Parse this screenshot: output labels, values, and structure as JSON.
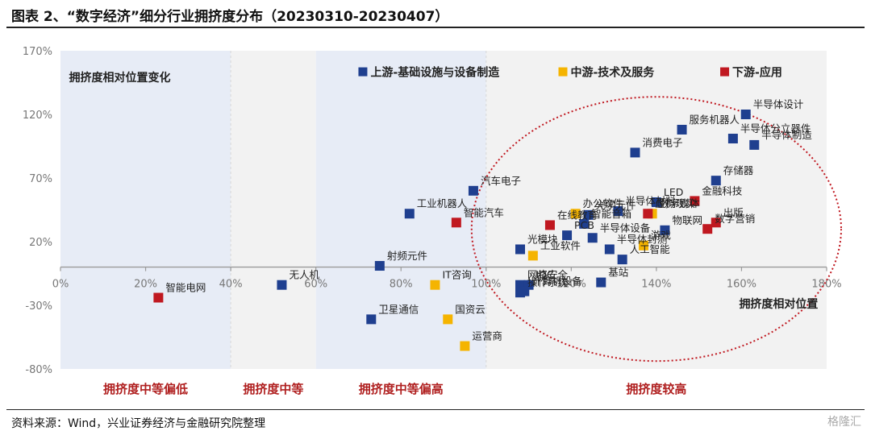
{
  "title": "图表 2、“数字经济”细分行业拥挤度分布（20230310-20230407）",
  "source": "资料来源：Wind，兴业证券经济与金融研究院整理",
  "watermark": "格隆汇",
  "colors": {
    "upstream": "#1f3f8f",
    "midstream": "#f5b400",
    "downstream": "#c01820",
    "bandBlue": "#e7ecf6",
    "bandGray": "#f2f2f2",
    "ellipse": "#c01820",
    "bandText": "#b02020"
  },
  "chart_data": {
    "type": "scatter",
    "title": "拥挤度相对位置变化",
    "xlabel": "拥挤度相对位置",
    "ylabel": "",
    "xlim": [
      0,
      180
    ],
    "ylim": [
      -80,
      170
    ],
    "x_ticks": [
      "0%",
      "20%",
      "40%",
      "60%",
      "80%",
      "100%",
      "120%",
      "140%",
      "160%",
      "180%"
    ],
    "y_ticks": [
      "-80%",
      "-30%",
      "20%",
      "70%",
      "120%",
      "170%"
    ],
    "x_tick_values": [
      0,
      20,
      40,
      60,
      80,
      100,
      120,
      140,
      160,
      180
    ],
    "y_tick_values": [
      -80,
      -30,
      20,
      70,
      120,
      170
    ],
    "legend_placement": "top",
    "series": [
      {
        "name": "上游-基础设施与设备制造",
        "color": "#1f3f8f",
        "points": [
          {
            "label": "半导体设计",
            "x": 161,
            "y": 120
          },
          {
            "label": "服务机器人",
            "x": 146,
            "y": 108
          },
          {
            "label": "半导体分立器件",
            "x": 158,
            "y": 101
          },
          {
            "label": "半导体制造",
            "x": 163,
            "y": 96
          },
          {
            "label": "消费电子",
            "x": 135,
            "y": 90
          },
          {
            "label": "存储器",
            "x": 154,
            "y": 68
          },
          {
            "label": "LED",
            "x": 140,
            "y": 51
          },
          {
            "label": "半导体材料",
            "x": 131,
            "y": 44
          },
          {
            "label": "物联网",
            "x": 142,
            "y": 29
          },
          {
            "label": "光学元件",
            "x": 124,
            "y": 41
          },
          {
            "label": "智能音箱",
            "x": 123,
            "y": 34
          },
          {
            "label": "PCB",
            "x": 119,
            "y": 25
          },
          {
            "label": "半导体设备",
            "x": 125,
            "y": 23
          },
          {
            "label": "半导体封测",
            "x": 129,
            "y": 14
          },
          {
            "label": "人工智能",
            "x": 132,
            "y": 6
          },
          {
            "label": "光模块",
            "x": 108,
            "y": 14
          },
          {
            "label": "汽车电子",
            "x": 97,
            "y": 60
          },
          {
            "label": "工业机器人",
            "x": 82,
            "y": 42
          },
          {
            "label": "射频元件",
            "x": 75,
            "y": 1
          },
          {
            "label": "无人机",
            "x": 52,
            "y": -14
          },
          {
            "label": "基站",
            "x": 127,
            "y": -12
          },
          {
            "label": "网络安全",
            "x": 108,
            "y": -14
          },
          {
            "label": "IDC",
            "x": 110,
            "y": -14
          },
          {
            "label": "计算机设备",
            "x": 109,
            "y": -19
          },
          {
            "label": "操作系统",
            "x": 108,
            "y": -20
          },
          {
            "label": "卫星通信",
            "x": 73,
            "y": -41
          }
        ]
      },
      {
        "name": "中游-技术及服务",
        "color": "#f5b400",
        "points": [
          {
            "label": "办公软件",
            "x": 121,
            "y": 42
          },
          {
            "label": "数字媒体",
            "x": 139,
            "y": 42
          },
          {
            "label": "游戏",
            "x": 137,
            "y": 17
          },
          {
            "label": "工业软件",
            "x": 111,
            "y": 9
          },
          {
            "label": "IT咨询",
            "x": 88,
            "y": -14
          },
          {
            "label": "国资云",
            "x": 91,
            "y": -41
          },
          {
            "label": "运营商",
            "x": 95,
            "y": -62
          }
        ]
      },
      {
        "name": "下游-应用",
        "color": "#c01820",
        "points": [
          {
            "label": "金融科技",
            "x": 149,
            "y": 52
          },
          {
            "label": "虚拟现实",
            "x": 138,
            "y": 42
          },
          {
            "label": "出版",
            "x": 154,
            "y": 35
          },
          {
            "label": "数字营销",
            "x": 152,
            "y": 30
          },
          {
            "label": "在线教育",
            "x": 115,
            "y": 33
          },
          {
            "label": "智能汽车",
            "x": 93,
            "y": 35
          },
          {
            "label": "智能电网",
            "x": 23,
            "y": -24
          }
        ]
      }
    ],
    "bands": [
      {
        "label": "拥挤度中等偏低",
        "from": 0,
        "to": 40
      },
      {
        "label": "拥挤度中等",
        "from": 40,
        "to": 60
      },
      {
        "label": "拥挤度中等偏高",
        "from": 60,
        "to": 100
      },
      {
        "label": "拥挤度较高",
        "from": 100,
        "to": 180
      }
    ]
  }
}
